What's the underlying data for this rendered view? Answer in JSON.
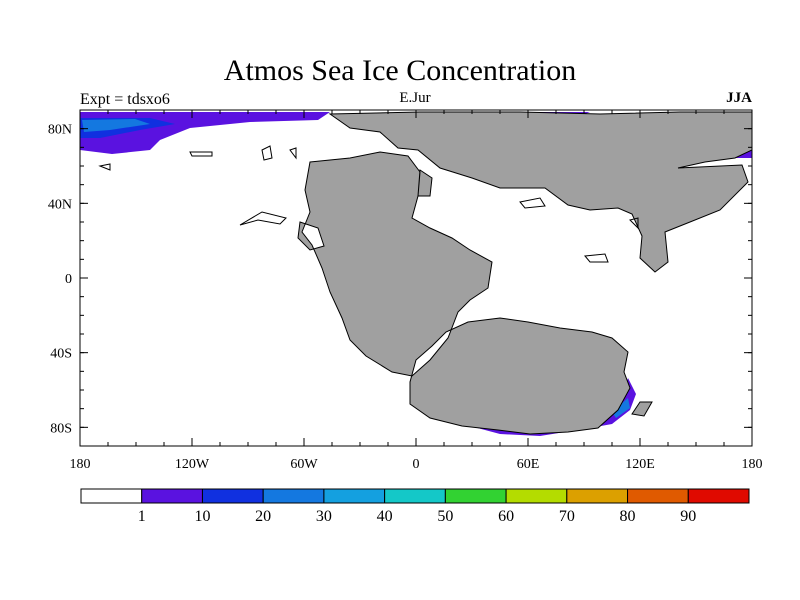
{
  "title": "Atmos Sea Ice Concentration",
  "left_label": "Expt = tdsxo6",
  "center_label": "E.Jur",
  "right_label": "JJA",
  "lat_ticks": [
    {
      "value": 80,
      "label": "80N"
    },
    {
      "value": 40,
      "label": "40N"
    },
    {
      "value": 0,
      "label": "0"
    },
    {
      "value": -40,
      "label": "40S"
    },
    {
      "value": -80,
      "label": "80S"
    }
  ],
  "lon_ticks": [
    {
      "value": -180,
      "label": "180"
    },
    {
      "value": -120,
      "label": "120W"
    },
    {
      "value": -60,
      "label": "60W"
    },
    {
      "value": 0,
      "label": "0"
    },
    {
      "value": 60,
      "label": "60E"
    },
    {
      "value": 120,
      "label": "120E"
    },
    {
      "value": 180,
      "label": "180"
    }
  ],
  "colorbar": {
    "labels": [
      "1",
      "10",
      "20",
      "30",
      "40",
      "50",
      "60",
      "70",
      "80",
      "90"
    ],
    "colors": [
      "#ffffff",
      "#5a12e0",
      "#1030e0",
      "#1478e0",
      "#14a0e0",
      "#14c8c8",
      "#32d232",
      "#b4dc00",
      "#dca000",
      "#e05a00",
      "#e00a00"
    ]
  },
  "land_color": "#a0a0a0"
}
